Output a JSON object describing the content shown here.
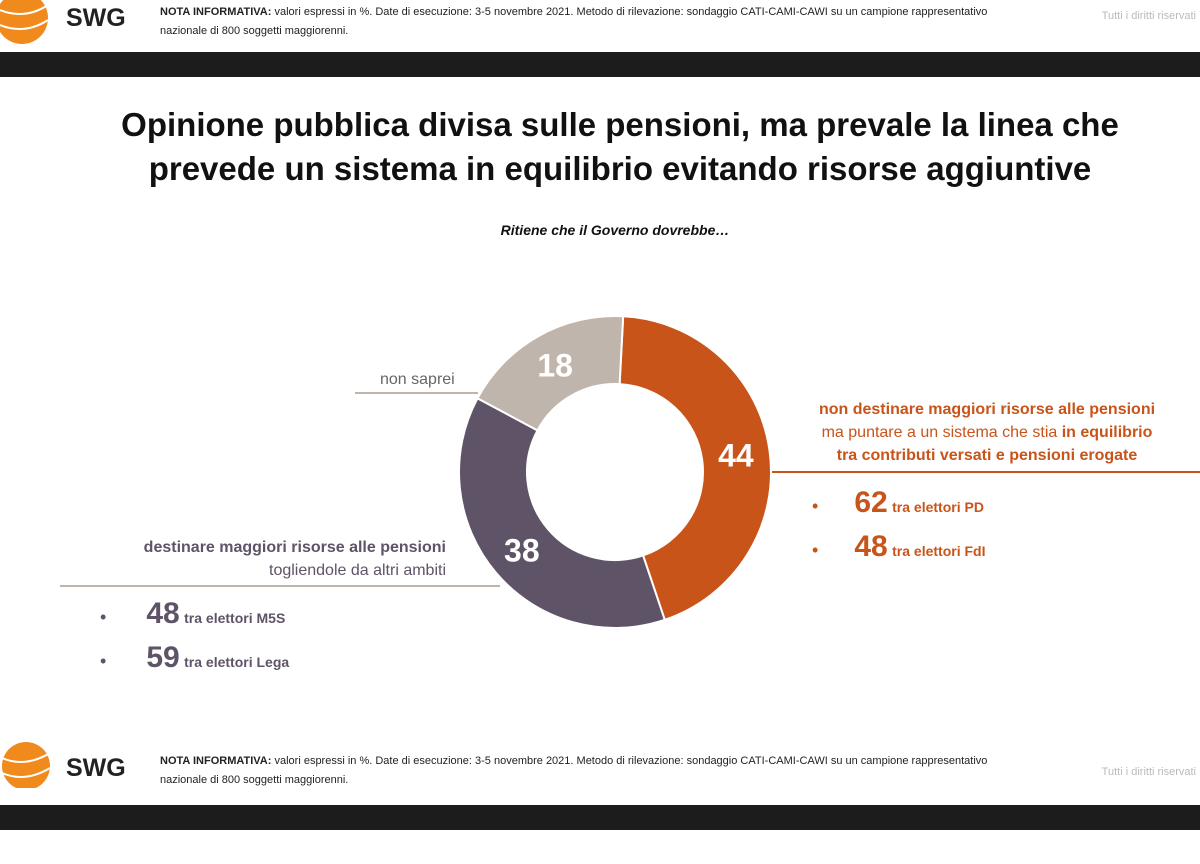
{
  "header": {
    "brand": "SWG",
    "nota_label": "NOTA INFORMATIVA:",
    "nota_text": " valori espressi in %. Date di esecuzione: 3-5 novembre 2021. Metodo di rilevazione: sondaggio CATI-CAMI-CAWI su un campione rappresentativo nazionale di 800 soggetti maggiorenni.",
    "rights": "Tutti i diritti riservati"
  },
  "slide": {
    "title_line1": "Opinione pubblica divisa sulle pensioni, ma prevale la linea che",
    "title_line2": "prevede un sistema in equilibrio evitando risorse aggiuntive",
    "subtitle": "Ritiene che il Governo dovrebbe…"
  },
  "colors": {
    "orange": "#c8541a",
    "purple": "#5f5368",
    "grey": "#c0b5ac"
  },
  "chart_data": {
    "type": "pie",
    "donut": true,
    "categories": [
      "non destinare maggiori risorse alle pensioni ma puntare a un sistema che stia in equilibrio tra contributi versati e pensioni erogate",
      "destinare maggiori risorse alle pensioni togliendole da altri ambiti",
      "non saprei"
    ],
    "values": [
      44,
      38,
      18
    ],
    "colors": [
      "#c8541a",
      "#5f5368",
      "#c0b5ac"
    ]
  },
  "labels": {
    "orange": {
      "l1": "non destinare maggiori risorse alle pensioni",
      "l2a": "ma puntare a un sistema che stia ",
      "l2b": "in equilibrio",
      "l3": "tra contributi versati e pensioni erogate",
      "items": [
        {
          "value": "62",
          "text": "tra elettori PD"
        },
        {
          "value": "48",
          "text": "tra elettori FdI"
        }
      ]
    },
    "purple": {
      "l1": "destinare maggiori risorse alle pensioni",
      "l2": "togliendole da altri ambiti",
      "items": [
        {
          "value": "48",
          "text": "tra elettori M5S"
        },
        {
          "value": "59",
          "text": "tra elettori Lega"
        }
      ]
    },
    "grey": {
      "l1": "non saprei"
    }
  }
}
